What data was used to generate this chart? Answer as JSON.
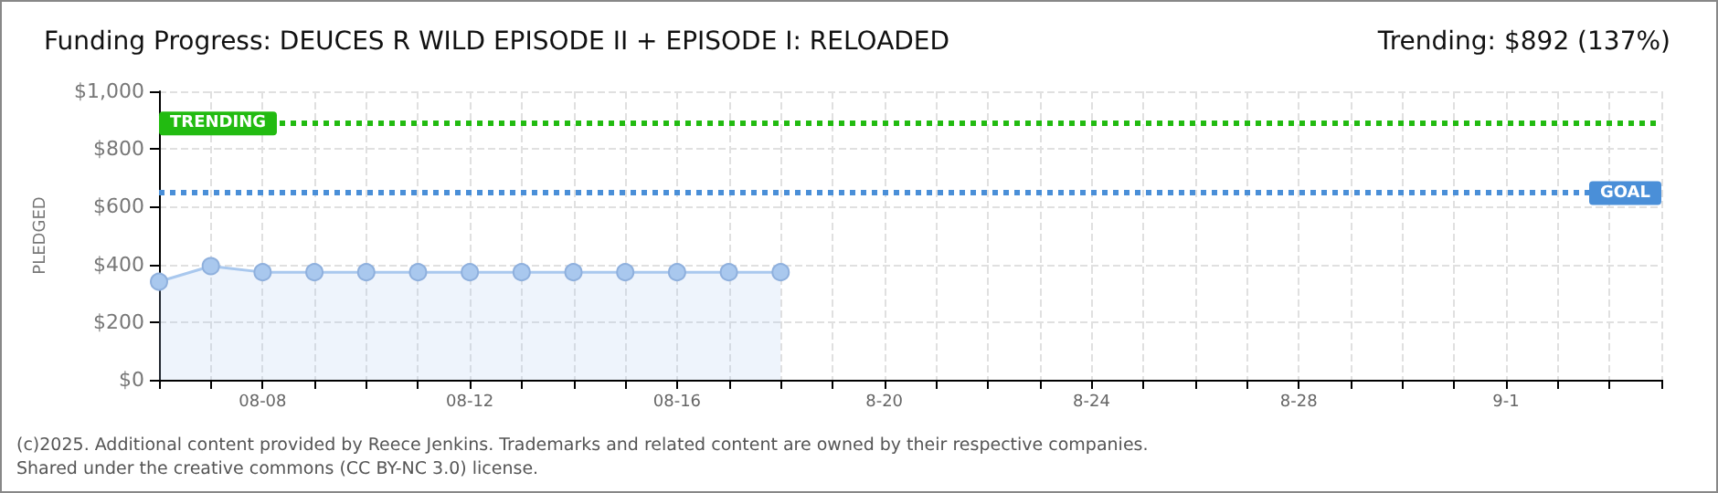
{
  "chart_data": {
    "type": "area",
    "title": "Funding Progress: DEUCES R WILD EPISODE II + EPISODE I: RELOADED",
    "subtitle": "Trending: $892 (137%)",
    "ylabel": "PLEDGED",
    "categories": [
      null,
      null,
      "08-08",
      null,
      null,
      null,
      "08-12",
      null,
      null,
      null,
      "08-16",
      null,
      null,
      null,
      "8-20",
      null,
      null,
      null,
      "8-24",
      null,
      null,
      null,
      "8-28",
      null,
      null,
      null,
      "9-1",
      null,
      null,
      null
    ],
    "series": [
      {
        "color": "#a9c8ee",
        "values": [
          340,
          394,
          373,
          373,
          373,
          373,
          373,
          373,
          373,
          373,
          373,
          373,
          373,
          null,
          null,
          null,
          null,
          null,
          null,
          null,
          null,
          null,
          null,
          null,
          null,
          null,
          null,
          null,
          null,
          null
        ]
      }
    ],
    "ylim": [
      0,
      1000
    ],
    "yticks": [
      {
        "value": 0,
        "label": "$0"
      },
      {
        "value": 200,
        "label": "$200"
      },
      {
        "value": 400,
        "label": "$400"
      },
      {
        "value": 600,
        "label": "$600"
      },
      {
        "value": 800,
        "label": "$800"
      },
      {
        "value": 1000,
        "label": "$1,000"
      }
    ],
    "ref_lines": [
      {
        "axis": "y",
        "value": 892,
        "label": "TRENDING",
        "color": "#22bb11",
        "line_style": "dotted"
      },
      {
        "axis": "y",
        "value": 650,
        "label": "GOAL",
        "color": "#4a8fd8",
        "line_style": "dotted"
      }
    ],
    "grid": true,
    "marker": "circle",
    "line_style": "solid",
    "annotations": [
      "(c)2025. Additional content provided by Reece Jenkins. Trademarks and related content are owned by their respective companies.",
      "Shared under the creative commons (CC BY-NC 3.0) license."
    ]
  }
}
